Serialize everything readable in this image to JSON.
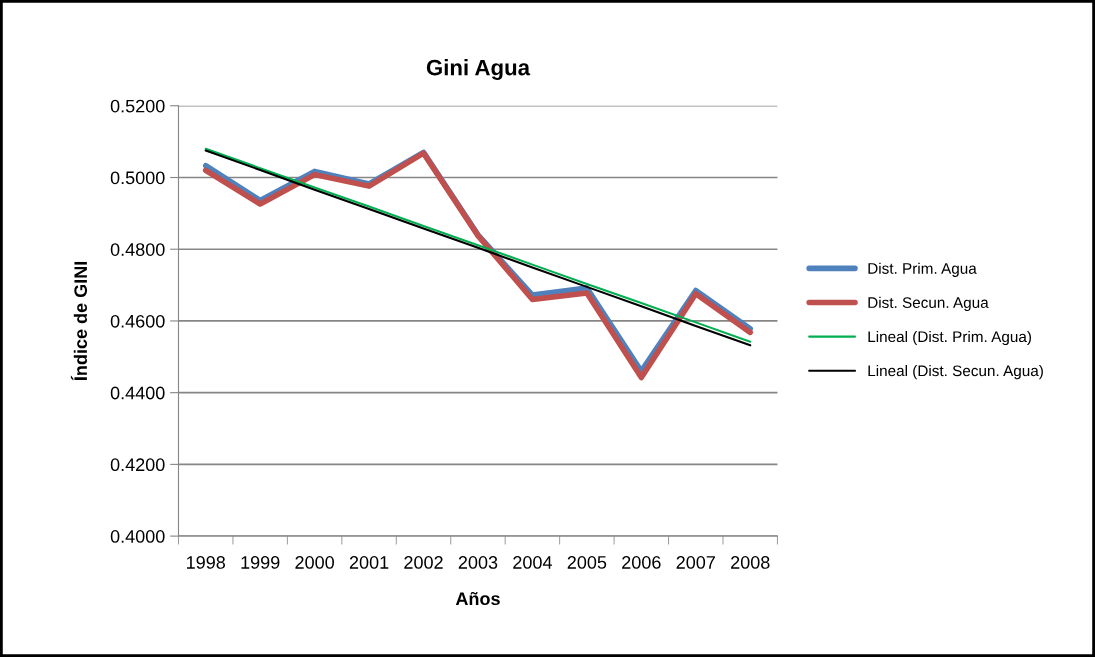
{
  "chart_data": {
    "type": "line",
    "title": "Gini Agua",
    "xlabel": "Años",
    "ylabel": "Índice de GINI",
    "categories": [
      "1998",
      "1999",
      "2000",
      "2001",
      "2002",
      "2003",
      "2004",
      "2005",
      "2006",
      "2007",
      "2008"
    ],
    "series": [
      {
        "name": "Dist. Prim. Agua",
        "color": "#4f81bd",
        "values": [
          0.5033,
          0.4936,
          0.5017,
          0.4982,
          0.507,
          0.484,
          0.4672,
          0.4692,
          0.446,
          0.4685,
          0.4578
        ]
      },
      {
        "name": "Dist. Secun. Agua",
        "color": "#c0504d",
        "values": [
          0.502,
          0.4926,
          0.5008,
          0.4976,
          0.5068,
          0.4838,
          0.466,
          0.4678,
          0.4442,
          0.4676,
          0.4568
        ]
      },
      {
        "name": "Lineal (Dist. Prim. Agua)",
        "color": "#00b050",
        "type": "line",
        "values": [
          0.508,
          0.5026,
          0.4972,
          0.4919,
          0.4865,
          0.4811,
          0.4757,
          0.4703,
          0.465,
          0.4596,
          0.4542
        ]
      },
      {
        "name": "Lineal (Dist. Secun. Agua)",
        "color": "#000000",
        "type": "line",
        "values": [
          0.5075,
          0.5021,
          0.4966,
          0.4912,
          0.4858,
          0.4804,
          0.4749,
          0.4695,
          0.4641,
          0.4586,
          0.4532
        ]
      }
    ],
    "ylim": [
      0.4,
      0.52
    ],
    "yticks": [
      {
        "value": 0.4,
        "label": "0.4000"
      },
      {
        "value": 0.42,
        "label": "0.4200"
      },
      {
        "value": 0.44,
        "label": "0.4400"
      },
      {
        "value": 0.46,
        "label": "0.4600"
      },
      {
        "value": 0.48,
        "label": "0.4800"
      },
      {
        "value": 0.5,
        "label": "0.5000"
      },
      {
        "value": 0.52,
        "label": "0.5200"
      }
    ],
    "grid": "y",
    "legend": "right",
    "marker": "none",
    "line_style": "solid"
  }
}
